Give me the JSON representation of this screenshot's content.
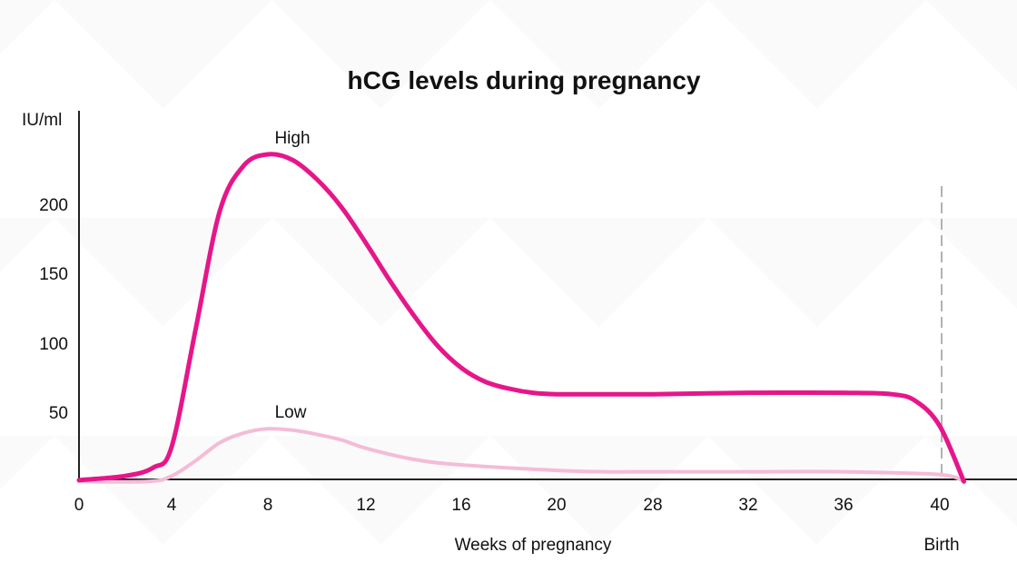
{
  "chart_data": {
    "type": "line",
    "title": "hCG levels during pregnancy",
    "xlabel": "Weeks of pregnancy",
    "ylabel": "IU/ml",
    "x_ticks": [
      "0",
      "4",
      "8",
      "12",
      "16",
      "20",
      "28",
      "32",
      "36",
      "40"
    ],
    "y_ticks": [
      "200",
      "150",
      "100",
      "50"
    ],
    "ylim": [
      0,
      265
    ],
    "grid": false,
    "birth_label": "Birth",
    "colors": {
      "high": "#e6168a",
      "low": "#f4bcd6",
      "axis": "#222222",
      "birth_line": "#999999"
    },
    "series": [
      {
        "name": "High",
        "points": [
          [
            0,
            1
          ],
          [
            2,
            4
          ],
          [
            3.2,
            10
          ],
          [
            4,
            25
          ],
          [
            5,
            110
          ],
          [
            6,
            195
          ],
          [
            7,
            228
          ],
          [
            8,
            236
          ],
          [
            9,
            232
          ],
          [
            10,
            218
          ],
          [
            11,
            198
          ],
          [
            12,
            172
          ],
          [
            13,
            145
          ],
          [
            14,
            120
          ],
          [
            15,
            98
          ],
          [
            16,
            82
          ],
          [
            17,
            72
          ],
          [
            18,
            67
          ],
          [
            19,
            64
          ],
          [
            20,
            63
          ],
          [
            24,
            63
          ],
          [
            28,
            63
          ],
          [
            32,
            64
          ],
          [
            36,
            64
          ],
          [
            38,
            63
          ],
          [
            39,
            58
          ],
          [
            40,
            40
          ],
          [
            41,
            0
          ]
        ]
      },
      {
        "name": "Low",
        "points": [
          [
            0,
            0
          ],
          [
            3,
            0
          ],
          [
            4,
            4
          ],
          [
            5,
            15
          ],
          [
            6,
            28
          ],
          [
            7,
            35
          ],
          [
            8,
            38
          ],
          [
            9,
            37
          ],
          [
            10,
            34
          ],
          [
            11,
            30
          ],
          [
            12,
            24
          ],
          [
            14,
            16
          ],
          [
            16,
            12
          ],
          [
            20,
            8
          ],
          [
            24,
            7
          ],
          [
            28,
            7
          ],
          [
            32,
            7
          ],
          [
            36,
            7
          ],
          [
            40,
            5
          ],
          [
            41,
            0
          ]
        ]
      }
    ]
  }
}
